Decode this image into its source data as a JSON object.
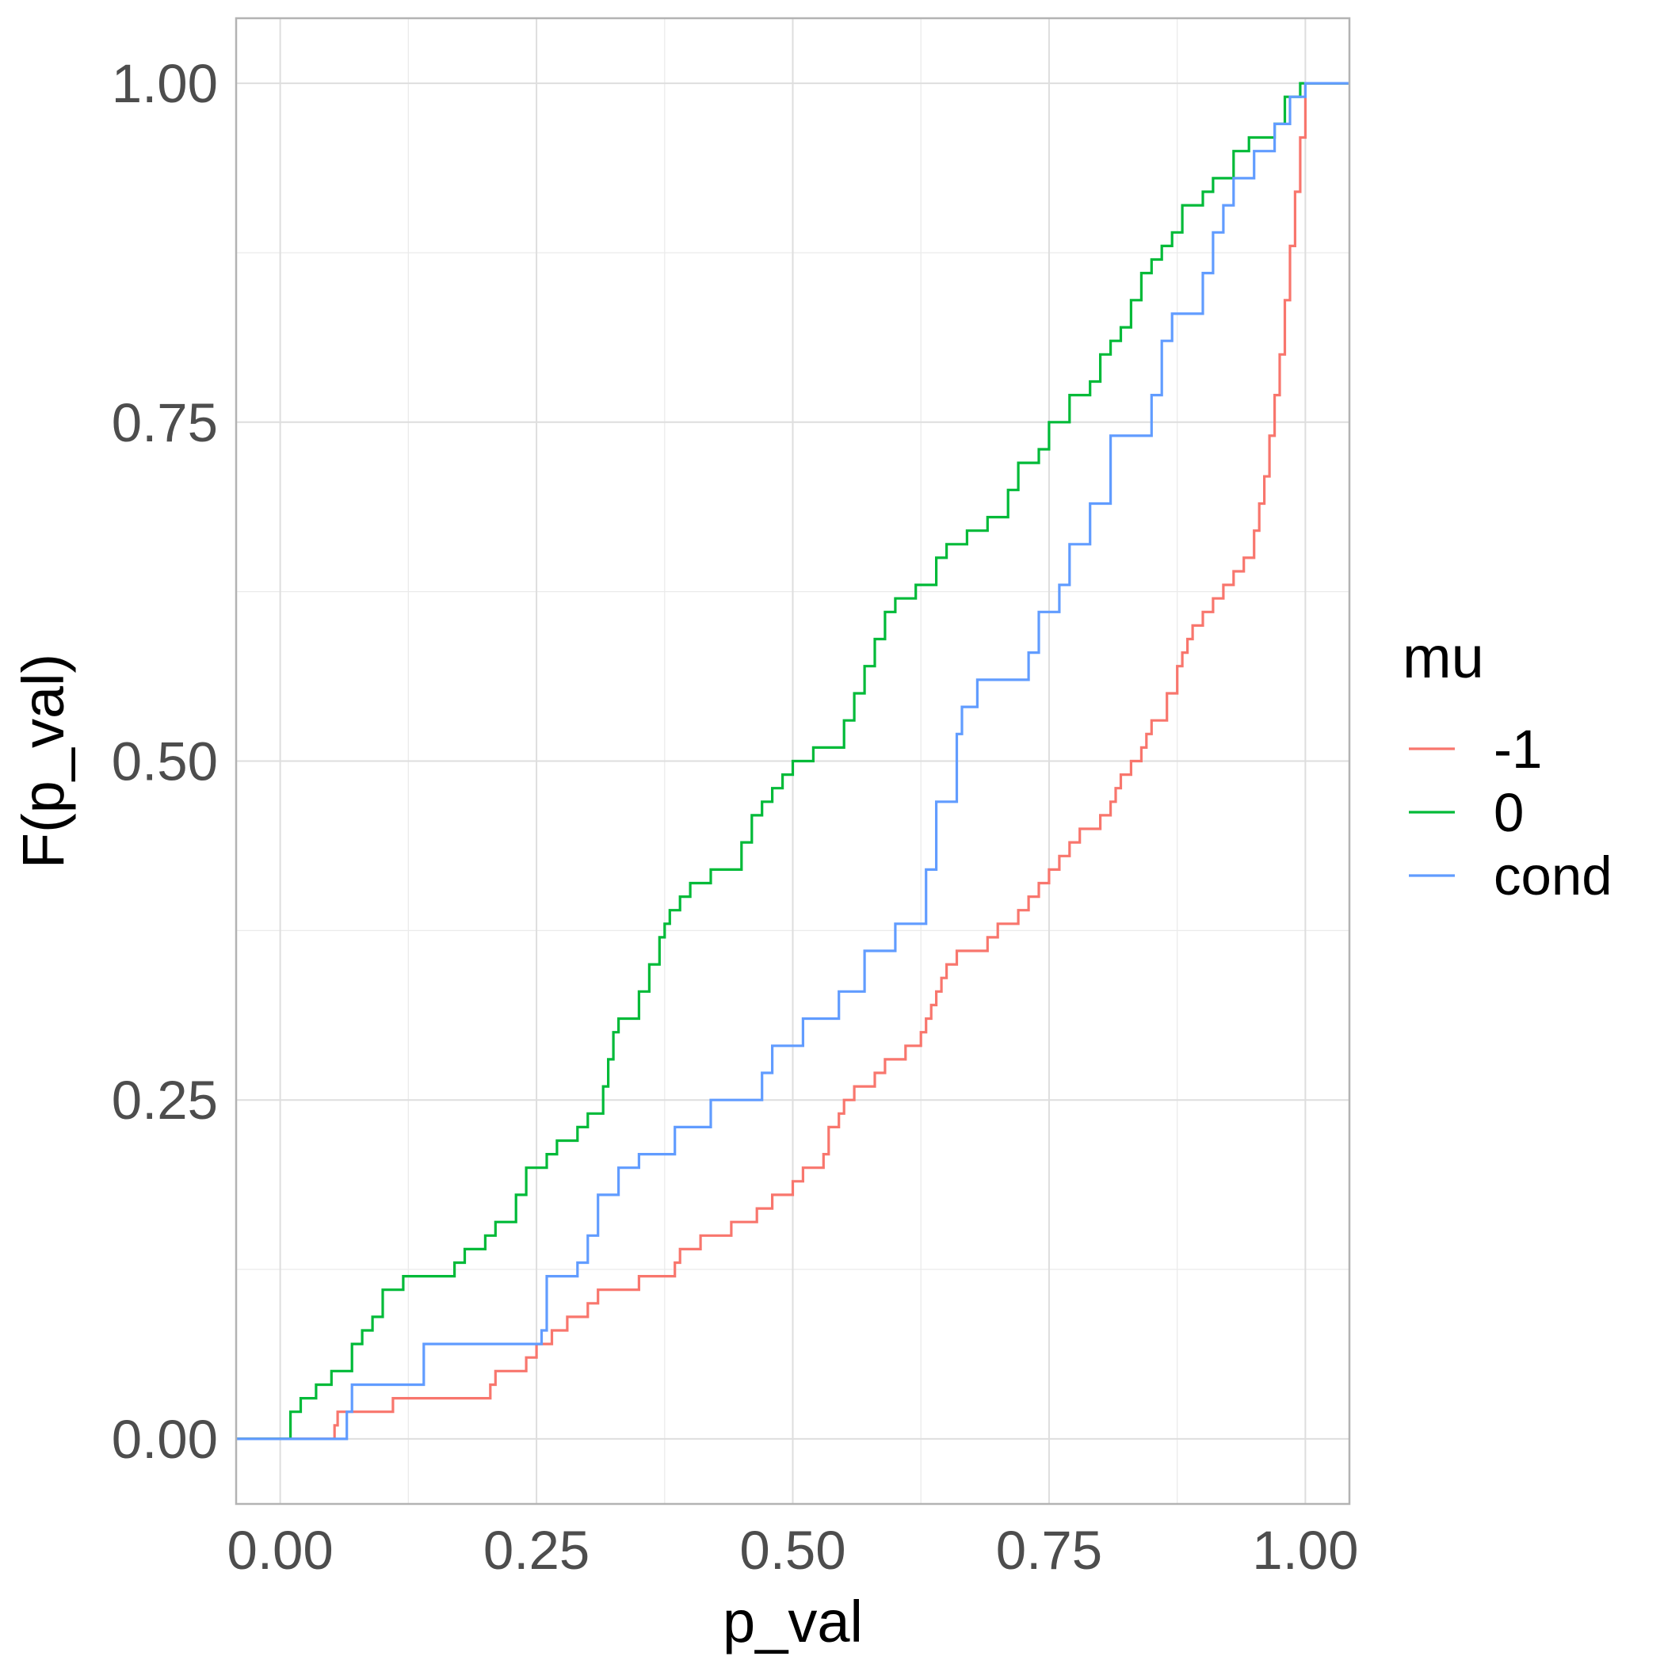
{
  "chart_data": {
    "type": "line",
    "step": true,
    "xlabel": "p_val",
    "ylabel": "F(p_val)",
    "xlim": [
      -0.043,
      1.043
    ],
    "ylim": [
      -0.048,
      1.048
    ],
    "x_ticks": [
      0.0,
      0.25,
      0.5,
      0.75,
      1.0
    ],
    "x_tick_labels": [
      "0.00",
      "0.25",
      "0.50",
      "0.75",
      "1.00"
    ],
    "y_ticks": [
      0.0,
      0.25,
      0.5,
      0.75,
      1.0
    ],
    "y_tick_labels": [
      "0.00",
      "0.25",
      "0.50",
      "0.75",
      "1.00"
    ],
    "grid": true,
    "legend": {
      "title": "mu",
      "position": "right"
    },
    "series": [
      {
        "name": "-1",
        "color": "#F8766D",
        "x": [
          -0.043,
          0.053,
          0.056,
          0.11,
          0.205,
          0.21,
          0.24,
          0.25,
          0.265,
          0.28,
          0.3,
          0.31,
          0.35,
          0.385,
          0.39,
          0.41,
          0.44,
          0.465,
          0.48,
          0.5,
          0.51,
          0.53,
          0.535,
          0.545,
          0.55,
          0.56,
          0.58,
          0.59,
          0.61,
          0.625,
          0.63,
          0.635,
          0.64,
          0.645,
          0.65,
          0.66,
          0.69,
          0.7,
          0.72,
          0.73,
          0.74,
          0.75,
          0.76,
          0.77,
          0.78,
          0.8,
          0.81,
          0.815,
          0.82,
          0.83,
          0.84,
          0.845,
          0.85,
          0.865,
          0.875,
          0.88,
          0.885,
          0.89,
          0.9,
          0.91,
          0.92,
          0.93,
          0.94,
          0.95,
          0.955,
          0.96,
          0.965,
          0.97,
          0.975,
          0.98,
          0.985,
          0.99,
          0.995,
          1.0,
          1.043
        ],
        "y": [
          0.0,
          0.01,
          0.02,
          0.03,
          0.04,
          0.05,
          0.06,
          0.07,
          0.08,
          0.09,
          0.1,
          0.11,
          0.12,
          0.13,
          0.14,
          0.15,
          0.16,
          0.17,
          0.18,
          0.19,
          0.2,
          0.21,
          0.23,
          0.24,
          0.25,
          0.26,
          0.27,
          0.28,
          0.29,
          0.3,
          0.31,
          0.32,
          0.33,
          0.34,
          0.35,
          0.36,
          0.37,
          0.38,
          0.39,
          0.4,
          0.41,
          0.42,
          0.43,
          0.44,
          0.45,
          0.46,
          0.47,
          0.48,
          0.49,
          0.5,
          0.51,
          0.52,
          0.53,
          0.55,
          0.57,
          0.58,
          0.59,
          0.6,
          0.61,
          0.62,
          0.63,
          0.64,
          0.65,
          0.67,
          0.69,
          0.71,
          0.74,
          0.77,
          0.8,
          0.84,
          0.88,
          0.92,
          0.96,
          1.0,
          1.0
        ]
      },
      {
        "name": "0",
        "color": "#00BA38",
        "x": [
          -0.043,
          0.01,
          0.02,
          0.035,
          0.05,
          0.07,
          0.08,
          0.09,
          0.1,
          0.12,
          0.17,
          0.18,
          0.2,
          0.21,
          0.23,
          0.24,
          0.26,
          0.27,
          0.29,
          0.3,
          0.315,
          0.32,
          0.325,
          0.33,
          0.35,
          0.36,
          0.37,
          0.375,
          0.38,
          0.39,
          0.4,
          0.42,
          0.45,
          0.46,
          0.47,
          0.48,
          0.49,
          0.5,
          0.52,
          0.55,
          0.56,
          0.57,
          0.58,
          0.59,
          0.6,
          0.62,
          0.64,
          0.65,
          0.67,
          0.69,
          0.71,
          0.72,
          0.74,
          0.75,
          0.77,
          0.79,
          0.8,
          0.81,
          0.82,
          0.83,
          0.84,
          0.85,
          0.86,
          0.87,
          0.88,
          0.9,
          0.91,
          0.93,
          0.945,
          0.97,
          0.98,
          0.995,
          1.043
        ],
        "y": [
          0.0,
          0.02,
          0.03,
          0.04,
          0.05,
          0.07,
          0.08,
          0.09,
          0.11,
          0.12,
          0.13,
          0.14,
          0.15,
          0.16,
          0.18,
          0.2,
          0.21,
          0.22,
          0.23,
          0.24,
          0.26,
          0.28,
          0.3,
          0.31,
          0.33,
          0.35,
          0.37,
          0.38,
          0.39,
          0.4,
          0.41,
          0.42,
          0.44,
          0.46,
          0.47,
          0.48,
          0.49,
          0.5,
          0.51,
          0.53,
          0.55,
          0.57,
          0.59,
          0.61,
          0.62,
          0.63,
          0.65,
          0.66,
          0.67,
          0.68,
          0.7,
          0.72,
          0.73,
          0.75,
          0.77,
          0.78,
          0.8,
          0.81,
          0.82,
          0.84,
          0.86,
          0.87,
          0.88,
          0.89,
          0.91,
          0.92,
          0.93,
          0.95,
          0.96,
          0.97,
          0.99,
          1.0,
          1.0
        ]
      },
      {
        "name": "cond",
        "color": "#619CFF",
        "x": [
          -0.043,
          0.065,
          0.07,
          0.14,
          0.255,
          0.26,
          0.29,
          0.3,
          0.31,
          0.33,
          0.35,
          0.385,
          0.42,
          0.47,
          0.48,
          0.51,
          0.545,
          0.57,
          0.6,
          0.63,
          0.64,
          0.66,
          0.665,
          0.68,
          0.73,
          0.74,
          0.76,
          0.77,
          0.79,
          0.81,
          0.85,
          0.86,
          0.87,
          0.9,
          0.91,
          0.92,
          0.93,
          0.95,
          0.97,
          0.985,
          1.0,
          1.043
        ],
        "y": [
          0.0,
          0.02,
          0.04,
          0.07,
          0.08,
          0.12,
          0.13,
          0.15,
          0.18,
          0.2,
          0.21,
          0.23,
          0.25,
          0.27,
          0.29,
          0.31,
          0.33,
          0.36,
          0.38,
          0.42,
          0.47,
          0.52,
          0.54,
          0.56,
          0.58,
          0.61,
          0.63,
          0.66,
          0.69,
          0.74,
          0.77,
          0.81,
          0.83,
          0.86,
          0.89,
          0.91,
          0.93,
          0.95,
          0.97,
          0.99,
          1.0,
          1.0
        ]
      }
    ]
  }
}
